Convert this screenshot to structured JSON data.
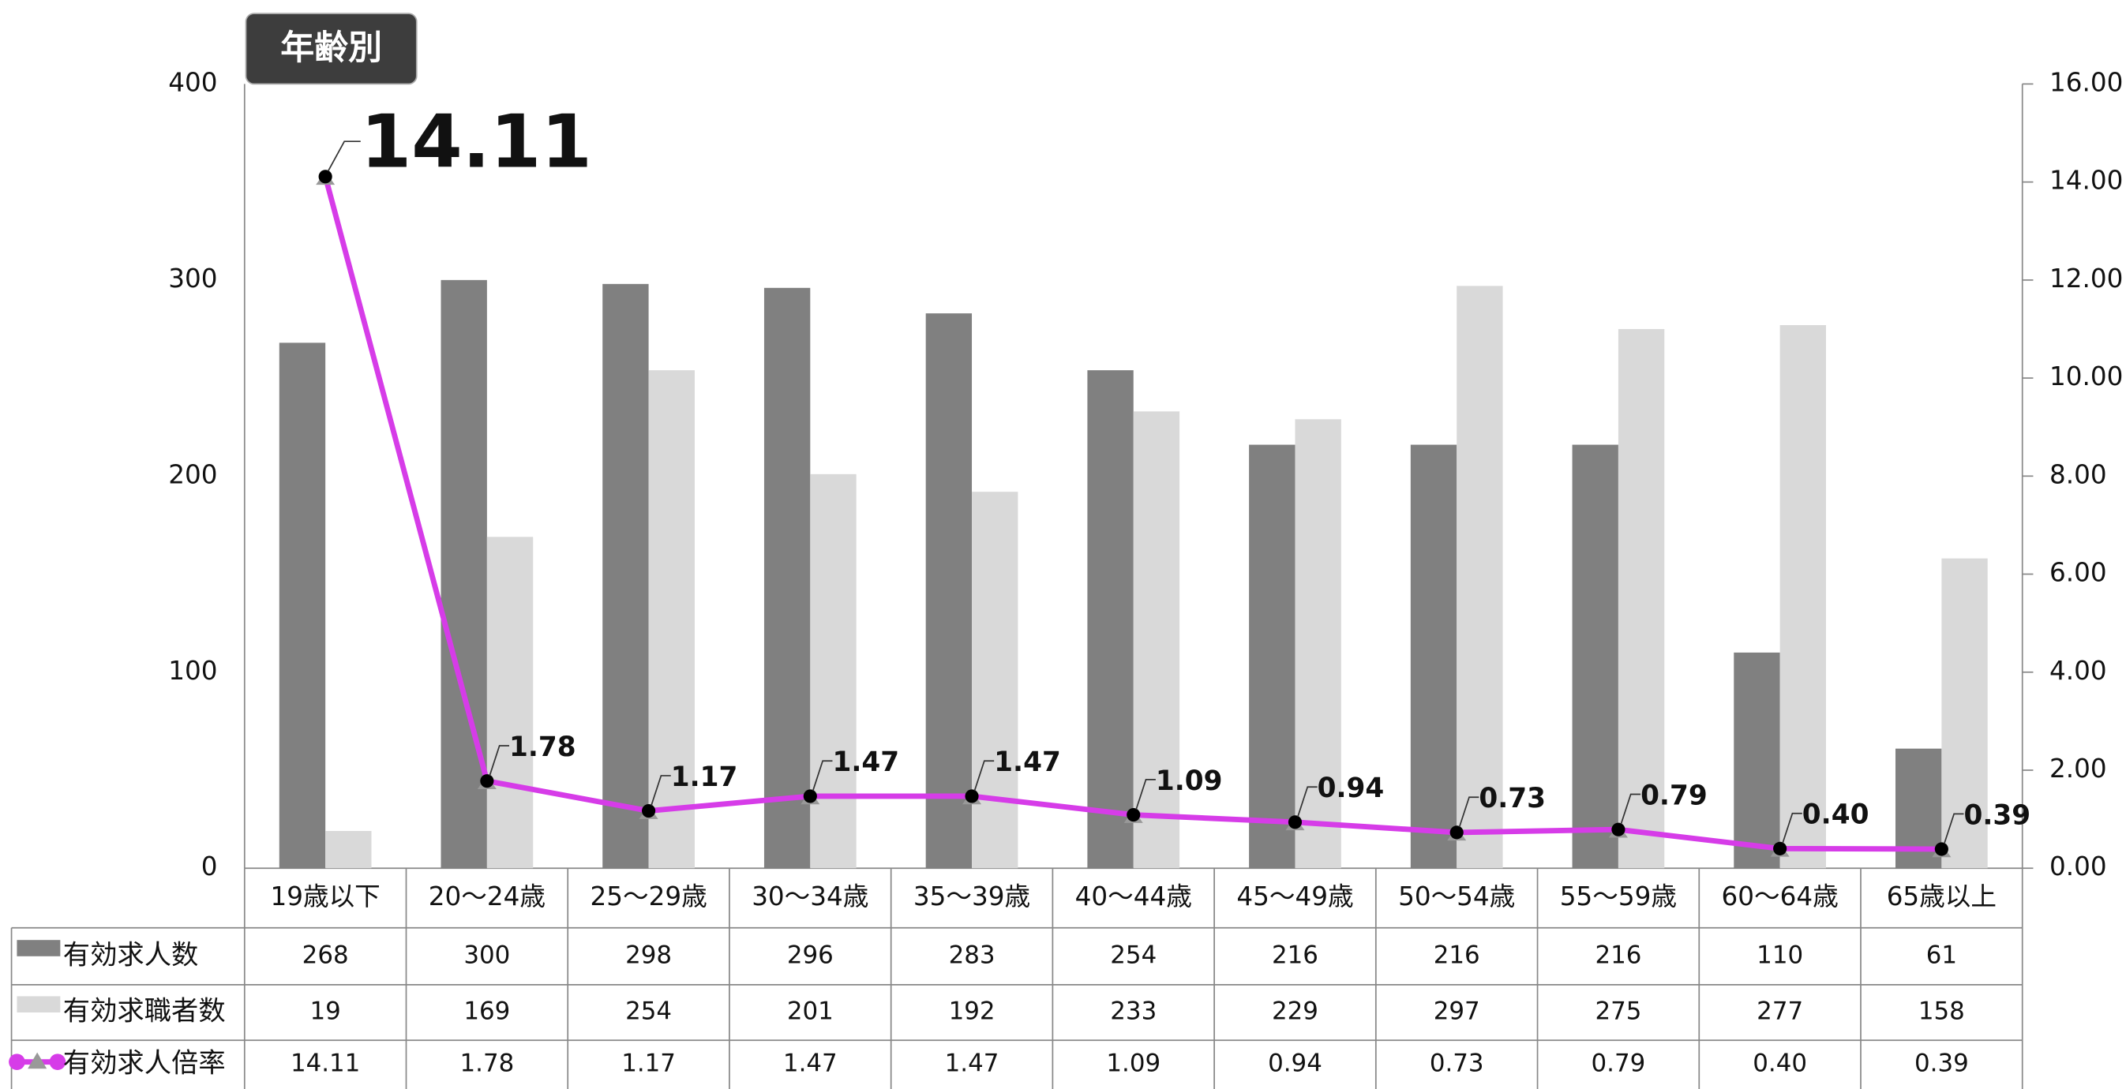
{
  "chart_data": {
    "type": "bar",
    "title": "年齢別",
    "categories": [
      "19歳以下",
      "20〜24歳",
      "25〜29歳",
      "30〜34歳",
      "35〜39歳",
      "40〜44歳",
      "45〜49歳",
      "50〜54歳",
      "55〜59歳",
      "60〜64歳",
      "65歳以上"
    ],
    "series": [
      {
        "name": "有効求人数",
        "type": "bar",
        "color": "#808080",
        "values": [
          268,
          300,
          298,
          296,
          283,
          254,
          216,
          216,
          216,
          110,
          61
        ]
      },
      {
        "name": "有効求職者数",
        "type": "bar",
        "color": "#d9d9d9",
        "values": [
          19,
          169,
          254,
          201,
          192,
          233,
          229,
          297,
          275,
          277,
          158
        ]
      },
      {
        "name": "有効求人倍率",
        "type": "line",
        "axis": "y2",
        "color": "#d63ce8",
        "values": [
          14.11,
          1.78,
          1.17,
          1.47,
          1.47,
          1.09,
          0.94,
          0.73,
          0.79,
          0.4,
          0.39
        ],
        "value_labels": [
          "14.11",
          "1.78",
          "1.17",
          "1.47",
          "1.47",
          "1.09",
          "0.94",
          "0.73",
          "0.79",
          "0.40",
          "0.39"
        ]
      }
    ],
    "ylim": [
      0,
      400
    ],
    "yticks": [
      0,
      100,
      200,
      300,
      400
    ],
    "y2lim": [
      0,
      16
    ],
    "y2ticks": [
      {
        "value": 0,
        "label": "0.00"
      },
      {
        "value": 2,
        "label": "2.00"
      },
      {
        "value": 4,
        "label": "4.00"
      },
      {
        "value": 6,
        "label": "6.00"
      },
      {
        "value": 8,
        "label": "8.00"
      },
      {
        "value": 10,
        "label": "10.00"
      },
      {
        "value": 12,
        "label": "12.00"
      },
      {
        "value": 14,
        "label": "14.00"
      },
      {
        "value": 16,
        "label": "16.00"
      }
    ],
    "grid": false
  }
}
